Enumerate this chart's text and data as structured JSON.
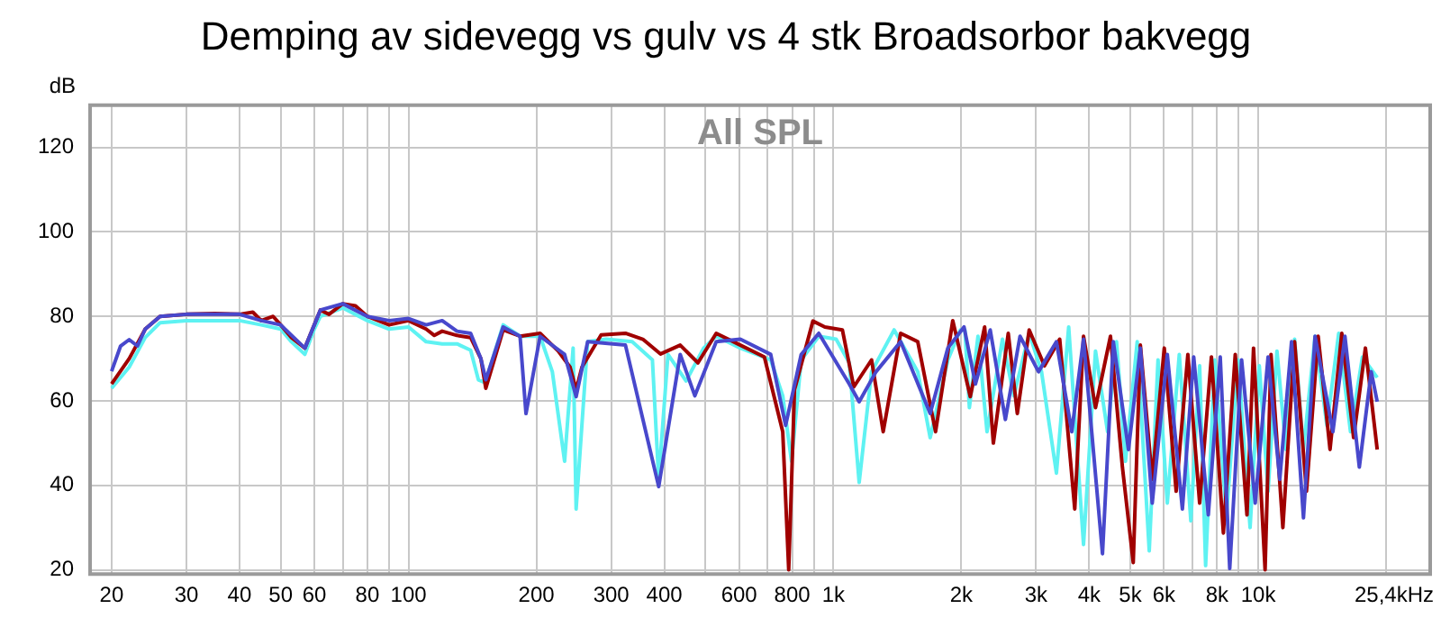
{
  "chart_data": {
    "type": "line",
    "title": "Demping av sidevegg vs gulv vs 4 stk Broadsorbor bakvegg",
    "ylabel": "dB",
    "annotations": [
      "All SPL"
    ],
    "log": "x",
    "grid": true,
    "legend": false,
    "marker": "none",
    "line_style": "solid",
    "xlim": [
      17.8,
      25400
    ],
    "ylim": [
      19,
      130
    ],
    "xticks": [
      20,
      30,
      40,
      50,
      60,
      {
        "value": 70,
        "label": null
      },
      80,
      {
        "value": 90,
        "label": null
      },
      100,
      200,
      300,
      400,
      {
        "value": 500,
        "label": null
      },
      600,
      {
        "value": 700,
        "label": null
      },
      800,
      {
        "value": 900,
        "label": null
      },
      {
        "value": 1000,
        "label": "1k"
      },
      {
        "value": 2000,
        "label": "2k"
      },
      {
        "value": 3000,
        "label": "3k"
      },
      {
        "value": 4000,
        "label": "4k"
      },
      {
        "value": 5000,
        "label": "5k"
      },
      {
        "value": 6000,
        "label": "6k"
      },
      {
        "value": 7000,
        "label": null
      },
      {
        "value": 8000,
        "label": "8k"
      },
      {
        "value": 9000,
        "label": null
      },
      {
        "value": 10000,
        "label": "10k"
      },
      {
        "value": 20000,
        "label": null
      },
      {
        "value": 25400,
        "label": null
      }
    ],
    "xlabel": "25,4kHz",
    "yticks": [
      20,
      40,
      60,
      80,
      100,
      120
    ],
    "series": [
      {
        "color": "#4848cc",
        "x": [
          20,
          21,
          22,
          23,
          24,
          26,
          30,
          40,
          45,
          50,
          57,
          60,
          62,
          70,
          80,
          90,
          100,
          110,
          120,
          130,
          140,
          148,
          152,
          167,
          183,
          189,
          204,
          233,
          248,
          264,
          324,
          388,
          436,
          472,
          530,
          604,
          712,
          772,
          840,
          924,
          1090,
          1150,
          1260,
          1440,
          1690,
          1860,
          2030,
          2160,
          2340,
          2540,
          2750,
          3040,
          3350,
          3640,
          3880,
          4300,
          4560,
          4950,
          5280,
          5630,
          6110,
          6630,
          7050,
          7630,
          8140,
          8570,
          9140,
          9840,
          10550,
          11240,
          11980,
          12780,
          13610,
          14990,
          16000,
          17300,
          18450,
          19060
        ],
        "values": [
          67,
          73,
          74.5,
          73,
          77,
          80,
          80.5,
          80.5,
          79,
          78,
          72.5,
          78,
          81.5,
          83,
          80,
          79,
          79.5,
          78,
          79,
          76.5,
          76,
          70,
          65,
          77.5,
          75.3,
          57,
          75.3,
          71,
          61,
          74,
          73.2,
          39.7,
          71,
          61.2,
          74,
          74.6,
          71,
          54.2,
          71,
          76,
          64,
          59.8,
          66.9,
          74,
          57,
          72.5,
          77.5,
          64,
          76.8,
          55.6,
          75.3,
          66.9,
          74,
          52.7,
          74.6,
          23.8,
          74,
          48.5,
          72.5,
          35.8,
          71,
          34.4,
          70.4,
          33,
          70.4,
          20.3,
          69.7,
          35.8,
          70.4,
          41.4,
          74,
          32.3,
          75.3,
          52.7,
          75.3,
          44.3,
          66.9,
          59.8
        ]
      },
      {
        "color": "#a00000",
        "x": [
          20,
          22,
          24,
          26,
          30,
          35,
          40,
          43,
          45,
          48,
          50,
          53,
          57,
          60,
          62,
          65,
          70,
          75,
          80,
          90,
          100,
          110,
          115,
          120,
          130,
          140,
          148,
          152,
          167,
          183,
          204,
          225,
          240,
          248,
          256,
          284,
          324,
          356,
          392,
          436,
          480,
          530,
          604,
          688,
          760,
          785,
          810,
          895,
          955,
          1050,
          1117,
          1230,
          1310,
          1440,
          1580,
          1740,
          1910,
          2100,
          2270,
          2380,
          2580,
          2710,
          2890,
          3140,
          3410,
          3700,
          3880,
          4140,
          4490,
          4790,
          5080,
          5280,
          5630,
          6010,
          6410,
          6830,
          7280,
          7760,
          8280,
          8830,
          9410,
          9750,
          10380,
          10720,
          11430,
          12180,
          12990,
          13840,
          14760,
          15730,
          16770,
          17880,
          19060
        ],
        "values": [
          64,
          70,
          77,
          80,
          80.5,
          80.7,
          80.5,
          81,
          79,
          80,
          78,
          75,
          72.5,
          78,
          81.5,
          80.5,
          83,
          82.5,
          80,
          78,
          79,
          77,
          75.5,
          76.5,
          75.5,
          75,
          70,
          63,
          76.8,
          75.3,
          76,
          71.8,
          68,
          62.6,
          68,
          75.6,
          76,
          74.6,
          71.1,
          73.2,
          69,
          76,
          73.2,
          70.4,
          52.7,
          20,
          62.6,
          78.9,
          77.5,
          76.8,
          63.3,
          69.7,
          52.7,
          76,
          74,
          52.7,
          79,
          61,
          77.5,
          50,
          76,
          57,
          76.8,
          68.3,
          74.6,
          34.4,
          75.3,
          58.4,
          75.3,
          44.3,
          21.7,
          73.2,
          41.4,
          72.5,
          38.6,
          71,
          35.8,
          70.4,
          28.7,
          71,
          33,
          72.5,
          20,
          71,
          30,
          74,
          38.6,
          75.3,
          48.5,
          76,
          51.3,
          72.5,
          48.5
        ]
      },
      {
        "color": "#5ef2f2",
        "x": [
          20,
          22,
          24,
          26,
          30,
          40,
          45,
          50,
          53,
          57,
          60,
          62,
          70,
          80,
          90,
          100,
          110,
          120,
          130,
          140,
          146,
          150,
          152,
          167,
          183,
          204,
          218,
          233,
          244,
          248,
          264,
          292,
          336,
          375,
          388,
          408,
          450,
          495,
          530,
          604,
          712,
          760,
          797,
          840,
          924,
          1015,
          1090,
          1150,
          1230,
          1390,
          1580,
          1690,
          1860,
          1990,
          2040,
          2090,
          2190,
          2300,
          2500,
          2660,
          2890,
          3090,
          3350,
          3580,
          3880,
          4140,
          4420,
          4640,
          4870,
          5190,
          5540,
          5810,
          6110,
          6520,
          6940,
          7280,
          7520,
          7900,
          8420,
          8970,
          9570,
          10060,
          10550,
          11070,
          11620,
          12180,
          12780,
          13610,
          14510,
          15470,
          16490,
          17590,
          19060
        ],
        "values": [
          63,
          68,
          75,
          78.5,
          79,
          79,
          78,
          77,
          74,
          71,
          77,
          80,
          82,
          79,
          77,
          77.5,
          74,
          73.5,
          73.5,
          72,
          65,
          64.5,
          64.7,
          78,
          75.3,
          75.3,
          66.9,
          45.7,
          72.5,
          34.4,
          74,
          74.6,
          74,
          69.7,
          41.4,
          71,
          64.7,
          72.5,
          75.3,
          72.5,
          69.7,
          61.2,
          45.7,
          69.7,
          75.3,
          74.6,
          69,
          40.7,
          66.9,
          76.8,
          66.9,
          51.3,
          69.7,
          76.8,
          76.8,
          58.4,
          75.3,
          52.7,
          74.6,
          61.2,
          76,
          66.9,
          42.9,
          77.5,
          26,
          71.8,
          52.7,
          74,
          45.7,
          74,
          24.5,
          69.7,
          35.8,
          71,
          31.6,
          68.3,
          21,
          69.7,
          33,
          69.7,
          30,
          68.3,
          38.6,
          71.8,
          48.5,
          74.6,
          48.5,
          75.3,
          54.2,
          76,
          52.7,
          70.4,
          65.5
        ]
      }
    ]
  }
}
